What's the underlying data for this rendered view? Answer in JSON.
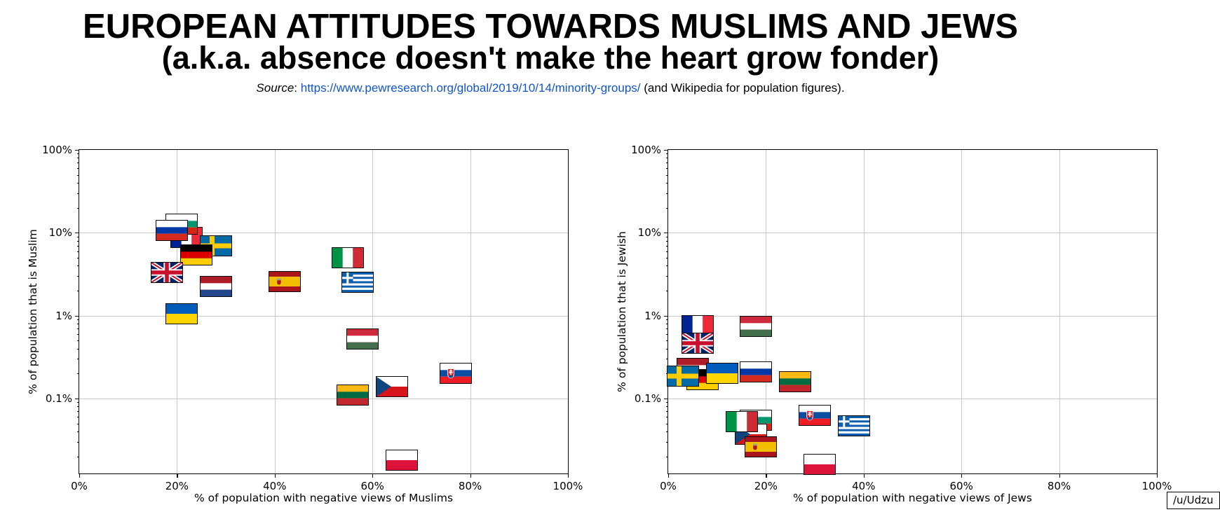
{
  "header": {
    "title_line1": "EUROPEAN ATTITUDES TOWARDS MUSLIMS AND JEWS",
    "title_line2": "(a.k.a. absence doesn't make the heart grow fonder)",
    "source_label": "Source",
    "source_separator": ": ",
    "source_url": "https://www.pewresearch.org/global/2019/10/14/minority-groups/",
    "source_suffix": " (and Wikipedia for population figures)."
  },
  "watermark": "/u/Udzu",
  "colors": {
    "link_blue": "#1155cc",
    "gridline": "#c8c8c8",
    "axis": "#000000",
    "background": "#ffffff"
  },
  "chart_data": [
    {
      "type": "scatter",
      "marker": "country-flag",
      "xlabel": "% of population with negative views of Muslims",
      "ylabel": "% of population that is Muslim",
      "x_scale": "linear",
      "y_scale": "log",
      "xlim": [
        0,
        100
      ],
      "ylim": [
        0.012,
        100
      ],
      "x_ticks": [
        0,
        20,
        40,
        60,
        80,
        100
      ],
      "x_tick_labels": [
        "0%",
        "20%",
        "40%",
        "60%",
        "80%",
        "100%"
      ],
      "y_ticks": [
        100,
        10,
        1,
        0.1
      ],
      "y_tick_labels": [
        "100%",
        "10%",
        "1%",
        "0.1%"
      ],
      "grid": true,
      "points": [
        {
          "country": "France",
          "code": "fr",
          "x": 22,
          "y": 8.8
        },
        {
          "country": "Bulgaria",
          "code": "bg",
          "x": 21,
          "y": 12.6
        },
        {
          "country": "Russia",
          "code": "ru",
          "x": 19,
          "y": 10.6
        },
        {
          "country": "Sweden",
          "code": "se",
          "x": 28,
          "y": 6.9
        },
        {
          "country": "Germany",
          "code": "de",
          "x": 24,
          "y": 5.4
        },
        {
          "country": "United Kingdom",
          "code": "gb",
          "x": 18,
          "y": 3.3
        },
        {
          "country": "Netherlands",
          "code": "nl",
          "x": 28,
          "y": 2.25
        },
        {
          "country": "Ukraine",
          "code": "ua",
          "x": 21,
          "y": 1.05
        },
        {
          "country": "Spain",
          "code": "es",
          "x": 42,
          "y": 2.6
        },
        {
          "country": "Italy",
          "code": "it",
          "x": 55,
          "y": 5.0
        },
        {
          "country": "Greece",
          "code": "gr",
          "x": 57,
          "y": 2.55
        },
        {
          "country": "Hungary",
          "code": "hu",
          "x": 58,
          "y": 0.52
        },
        {
          "country": "Lithuania",
          "code": "lt",
          "x": 56,
          "y": 0.11
        },
        {
          "country": "Czechia",
          "code": "cz",
          "x": 64,
          "y": 0.14
        },
        {
          "country": "Slovakia",
          "code": "sk",
          "x": 77,
          "y": 0.2
        },
        {
          "country": "Poland",
          "code": "pl",
          "x": 66,
          "y": 0.018
        }
      ]
    },
    {
      "type": "scatter",
      "marker": "country-flag",
      "xlabel": "% of population with negative views of Jews",
      "ylabel": "% of population that is Jewish",
      "x_scale": "linear",
      "y_scale": "log",
      "xlim": [
        0,
        100
      ],
      "ylim": [
        0.012,
        100
      ],
      "x_ticks": [
        0,
        20,
        40,
        60,
        80,
        100
      ],
      "x_tick_labels": [
        "0%",
        "20%",
        "40%",
        "60%",
        "80%",
        "100%"
      ],
      "y_ticks": [
        100,
        10,
        1,
        0.1
      ],
      "y_tick_labels": [
        "100%",
        "10%",
        "1%",
        "0.1%"
      ],
      "grid": true,
      "points": [
        {
          "country": "Hungary",
          "code": "hu",
          "x": 18,
          "y": 0.74
        },
        {
          "country": "France",
          "code": "fr",
          "x": 6,
          "y": 0.76
        },
        {
          "country": "United Kingdom",
          "code": "gb",
          "x": 6,
          "y": 0.46
        },
        {
          "country": "Netherlands",
          "code": "nl",
          "x": 5,
          "y": 0.23
        },
        {
          "country": "Germany",
          "code": "de",
          "x": 7,
          "y": 0.17
        },
        {
          "country": "Ukraine",
          "code": "ua",
          "x": 11,
          "y": 0.2
        },
        {
          "country": "Sweden",
          "code": "se",
          "x": 3,
          "y": 0.185
        },
        {
          "country": "Russia",
          "code": "ru",
          "x": 18,
          "y": 0.21
        },
        {
          "country": "Lithuania",
          "code": "lt",
          "x": 26,
          "y": 0.16
        },
        {
          "country": "Bulgaria",
          "code": "bg",
          "x": 18,
          "y": 0.055
        },
        {
          "country": "Czechia",
          "code": "cz",
          "x": 17,
          "y": 0.037
        },
        {
          "country": "Italy",
          "code": "it",
          "x": 15,
          "y": 0.052
        },
        {
          "country": "Spain",
          "code": "es",
          "x": 19,
          "y": 0.026
        },
        {
          "country": "Slovakia",
          "code": "sk",
          "x": 30,
          "y": 0.063
        },
        {
          "country": "Greece",
          "code": "gr",
          "x": 38,
          "y": 0.047
        },
        {
          "country": "Poland",
          "code": "pl",
          "x": 31,
          "y": 0.016
        }
      ]
    }
  ]
}
